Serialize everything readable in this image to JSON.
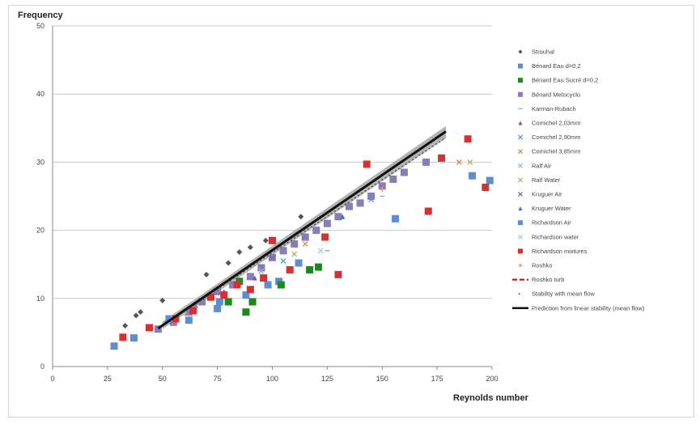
{
  "chart_data": {
    "type": "scatter",
    "title": "",
    "ylabel": "Frequency",
    "xlabel": "Reynolds number",
    "xlim": [
      0,
      200
    ],
    "ylim": [
      0,
      50
    ],
    "xticks": [
      "0",
      "25",
      "50",
      "75",
      "100",
      "125",
      "150",
      "175",
      "200"
    ],
    "yticks": [
      "0",
      "10",
      "20",
      "30",
      "40",
      "50"
    ],
    "grid": "horizontal",
    "legend_position": "right",
    "series": [
      {
        "name": "Strouhal",
        "marker": "diamond",
        "color": "#555555",
        "points": [
          [
            33,
            6
          ],
          [
            38,
            7.5
          ],
          [
            40,
            8
          ],
          [
            50,
            9.7
          ],
          [
            70,
            13.5
          ],
          [
            80,
            15.2
          ],
          [
            85,
            16.8
          ],
          [
            90,
            17.5
          ],
          [
            97,
            18.5
          ],
          [
            113,
            22
          ]
        ]
      },
      {
        "name": "Bénard Eau d=0,2",
        "marker": "square",
        "color": "#5b8fd4",
        "points": [
          [
            28,
            3
          ],
          [
            37,
            4.2
          ],
          [
            53,
            7
          ],
          [
            62,
            6.8
          ],
          [
            75,
            8.5
          ],
          [
            88,
            10.5
          ],
          [
            98,
            12
          ],
          [
            103,
            12.5
          ]
        ]
      },
      {
        "name": "Bénard Eau Sucré d=0,2",
        "marker": "square",
        "color": "#1a8a1a",
        "points": [
          [
            88,
            8
          ],
          [
            91,
            9.5
          ],
          [
            104,
            12
          ],
          [
            117,
            14.2
          ],
          [
            121,
            14.6
          ],
          [
            85,
            12.5
          ],
          [
            80,
            9.5
          ]
        ]
      },
      {
        "name": "Bénard Metocyclo",
        "marker": "square",
        "color": "#8a7cb6",
        "points": [
          [
            48,
            5.5
          ],
          [
            55,
            6.5
          ],
          [
            62,
            8
          ],
          [
            68,
            9.5
          ],
          [
            75,
            11
          ],
          [
            82,
            12
          ],
          [
            90,
            13.2
          ],
          [
            95,
            14.5
          ],
          [
            100,
            16
          ],
          [
            105,
            17
          ],
          [
            110,
            18
          ],
          [
            115,
            19
          ],
          [
            120,
            20
          ],
          [
            125,
            21
          ],
          [
            130,
            22
          ],
          [
            135,
            23.5
          ],
          [
            140,
            24
          ],
          [
            145,
            25
          ],
          [
            150,
            26.5
          ],
          [
            155,
            27.5
          ],
          [
            160,
            28.5
          ],
          [
            170,
            30
          ]
        ]
      },
      {
        "name": "Karman-Rubach",
        "marker": "dash",
        "color": "#8db3e2",
        "points": [
          [
            125,
            17
          ],
          [
            150,
            25
          ]
        ]
      },
      {
        "name": "Comichel 2,03mm",
        "marker": "triangle",
        "color": "#6e5aa0",
        "points": [
          [
            72,
            10
          ],
          [
            92,
            13
          ]
        ]
      },
      {
        "name": "Comichel 2,90mm",
        "marker": "x",
        "color": "#4aa0b8",
        "points": [
          [
            105,
            15.5
          ],
          [
            145,
            24.5
          ]
        ]
      },
      {
        "name": "Comichel 3,85mm",
        "marker": "x",
        "color": "#d08b4a",
        "points": [
          [
            115,
            18
          ],
          [
            185,
            30
          ]
        ]
      },
      {
        "name": "Ralf Air",
        "marker": "x",
        "color": "#8db3e2",
        "points": [
          [
            60,
            8.2
          ],
          [
            95,
            14
          ]
        ]
      },
      {
        "name": "Ralf Water",
        "marker": "x",
        "color": "#9bbb59",
        "points": [
          [
            110,
            16.5
          ],
          [
            190,
            30
          ]
        ]
      },
      {
        "name": "Kruguer Air",
        "marker": "x",
        "color": "#7f6aa8",
        "points": [
          [
            65,
            9
          ],
          [
            100,
            16
          ]
        ]
      },
      {
        "name": "Kruguer Water",
        "marker": "triangle",
        "color": "#3a7a9a",
        "points": [
          [
            78,
            11
          ],
          [
            132,
            22
          ]
        ]
      },
      {
        "name": "Richardson Air",
        "marker": "square",
        "color": "#5b8fd4",
        "points": [
          [
            76,
            9.5
          ],
          [
            112,
            15.2
          ],
          [
            156,
            21.7
          ],
          [
            191,
            28
          ],
          [
            199,
            27.3
          ]
        ]
      },
      {
        "name": "Richardson water",
        "marker": "x",
        "color": "#a6c8e8",
        "points": [
          [
            55,
            7
          ],
          [
            122,
            17
          ]
        ]
      },
      {
        "name": "Richardson mixtures",
        "marker": "square",
        "color": "#d63030",
        "points": [
          [
            32,
            4.3
          ],
          [
            44,
            5.7
          ],
          [
            56,
            7
          ],
          [
            64,
            8.2
          ],
          [
            72,
            10.2
          ],
          [
            78,
            10.5
          ],
          [
            84,
            12
          ],
          [
            90,
            11.3
          ],
          [
            96,
            13
          ],
          [
            100,
            18.5
          ],
          [
            108,
            14.2
          ],
          [
            124,
            19
          ],
          [
            130,
            13.5
          ],
          [
            143,
            29.7
          ],
          [
            171,
            22.8
          ],
          [
            177,
            30.6
          ],
          [
            189,
            33.4
          ],
          [
            197,
            26.3
          ]
        ]
      },
      {
        "name": "Roshko",
        "marker": "plus",
        "color": "#e8a060",
        "points": [
          [
            60,
            7.8
          ],
          [
            150,
            26
          ]
        ]
      }
    ],
    "lines": [
      {
        "name": "Roshko turb",
        "style": "dashed",
        "color": "#cc0000",
        "points": []
      },
      {
        "name": "Stability with mean flow",
        "style": "dotted",
        "color": "#555555",
        "points": [
          [
            50,
            6
          ],
          [
            179,
            33.6
          ]
        ]
      },
      {
        "name": "Prediction from linear stability (mean flow)",
        "style": "solid",
        "color": "#111111",
        "points": [
          [
            48,
            5.6
          ],
          [
            179,
            34.5
          ]
        ]
      }
    ],
    "bands": [
      {
        "color": "#9a9a9a",
        "lower": [
          [
            50,
            5.5
          ],
          [
            179,
            33.5
          ]
        ],
        "upper": [
          [
            50,
            6.6
          ],
          [
            179,
            35.3
          ]
        ]
      }
    ]
  }
}
